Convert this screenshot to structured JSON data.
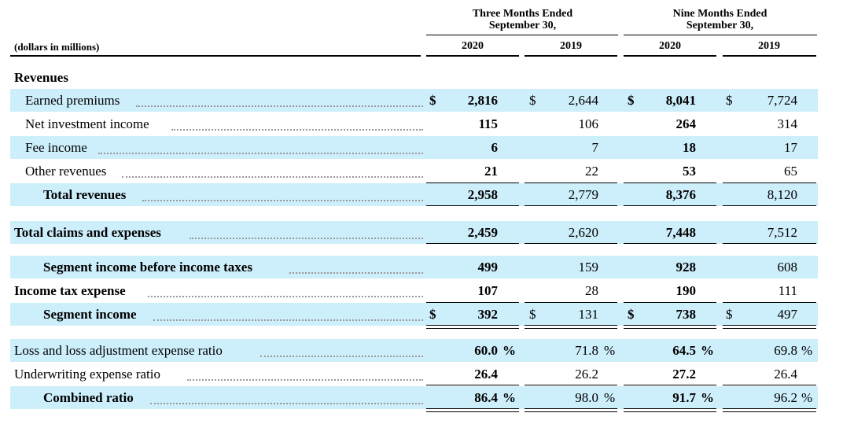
{
  "header": {
    "units_label": "(dollars in millions)",
    "groups": [
      {
        "line1": "Three Months Ended",
        "line2": "September 30,"
      },
      {
        "line1": "Nine Months Ended",
        "line2": "September 30,"
      }
    ],
    "years": [
      "2020",
      "2019",
      "2020",
      "2019"
    ]
  },
  "section_label": "Revenues",
  "rows": [
    {
      "label": "Earned premiums",
      "values": [
        "2,816",
        "2,644",
        "8,041",
        "7,724"
      ],
      "currency": [
        "$",
        "$",
        "$",
        "$"
      ]
    },
    {
      "label": "Net investment income",
      "values": [
        "115",
        "106",
        "264",
        "314"
      ]
    },
    {
      "label": "Fee income",
      "values": [
        "6",
        "7",
        "18",
        "17"
      ]
    },
    {
      "label": "Other revenues",
      "values": [
        "21",
        "22",
        "53",
        "65"
      ]
    },
    {
      "label": "Total revenues",
      "values": [
        "2,958",
        "2,779",
        "8,376",
        "8,120"
      ]
    },
    {
      "label": "Total claims and expenses",
      "values": [
        "2,459",
        "2,620",
        "7,448",
        "7,512"
      ]
    },
    {
      "label": "Segment income before income taxes",
      "values": [
        "499",
        "159",
        "928",
        "608"
      ]
    },
    {
      "label": "Income tax expense",
      "values": [
        "107",
        "28",
        "190",
        "111"
      ]
    },
    {
      "label": "Segment income",
      "values": [
        "392",
        "131",
        "738",
        "497"
      ],
      "currency": [
        "$",
        "$",
        "$",
        "$"
      ]
    },
    {
      "label": "Loss and loss adjustment expense ratio",
      "values": [
        "60.0",
        "71.8",
        "64.5",
        "69.8"
      ],
      "suffix": "%"
    },
    {
      "label": "Underwriting expense ratio",
      "values": [
        "26.4",
        "26.2",
        "27.2",
        "26.4"
      ]
    },
    {
      "label": "Combined ratio",
      "values": [
        "86.4",
        "98.0",
        "91.7",
        "96.2"
      ],
      "suffix": "%"
    }
  ]
}
